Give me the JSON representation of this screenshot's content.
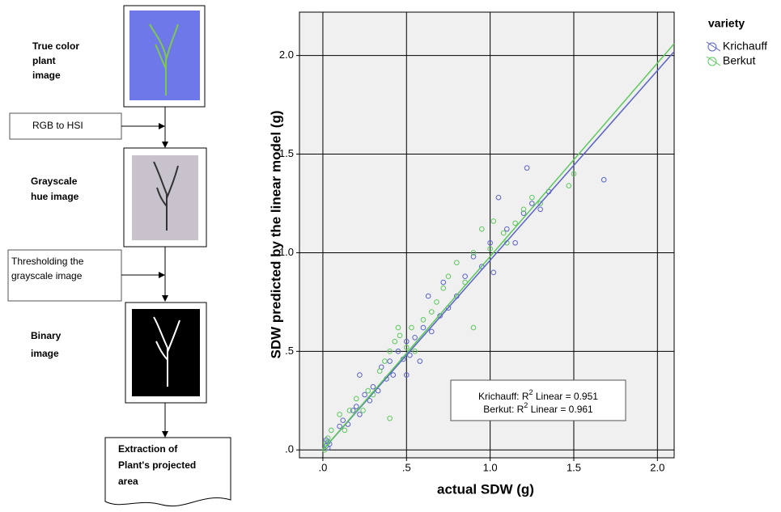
{
  "flowchart": {
    "steps": [
      {
        "lines": [
          "True color",
          "plant",
          "image"
        ]
      },
      {
        "lines": [
          "Grayscale",
          "hue image"
        ]
      },
      {
        "lines": [
          "Binary",
          "image"
        ]
      }
    ],
    "processes": [
      {
        "lines": [
          "RGB to HSI"
        ]
      },
      {
        "lines": [
          "Thresholding the",
          "grayscale image"
        ]
      }
    ],
    "output": {
      "lines": [
        "Extraction of",
        "Plant's projected",
        "area"
      ]
    }
  },
  "chart_data": {
    "type": "scatter",
    "xlabel": "actual SDW (g)",
    "ylabel": "SDW predicted by the linear model (g)",
    "xlim": [
      -0.14,
      2.1
    ],
    "ylim": [
      -0.04,
      2.22
    ],
    "xticks": [
      {
        "value": 0,
        "label": ".0"
      },
      {
        "value": 0.5,
        "label": ".5"
      },
      {
        "value": 1,
        "label": "1.0"
      },
      {
        "value": 1.5,
        "label": "1.5"
      },
      {
        "value": 2,
        "label": "2.0"
      }
    ],
    "yticks": [
      {
        "value": 0,
        "label": ".0"
      },
      {
        "value": 0.5,
        "label": ".5"
      },
      {
        "value": 1,
        "label": "1.0"
      },
      {
        "value": 1.5,
        "label": "1.5"
      },
      {
        "value": 2,
        "label": "2.0"
      }
    ],
    "grid": true,
    "legend_title": "variety",
    "legend_position": "outside-right",
    "series": [
      {
        "name": "Krichauff",
        "color": "#5a63c8",
        "x": [
          0.02,
          0.03,
          0.02,
          0.04,
          0.03,
          0.1,
          0.12,
          0.15,
          0.18,
          0.2,
          0.22,
          0.25,
          0.28,
          0.3,
          0.33,
          0.35,
          0.38,
          0.4,
          0.42,
          0.45,
          0.48,
          0.5,
          0.52,
          0.55,
          0.58,
          0.6,
          0.63,
          0.65,
          0.7,
          0.72,
          0.75,
          0.8,
          0.85,
          0.9,
          0.95,
          1.0,
          1.02,
          1.05,
          1.1,
          1.15,
          1.2,
          1.22,
          1.25,
          1.3,
          1.35,
          1.68,
          0.22,
          0.5
        ],
        "y": [
          0.02,
          0.04,
          0.05,
          0.03,
          0.01,
          0.12,
          0.15,
          0.13,
          0.2,
          0.22,
          0.18,
          0.28,
          0.25,
          0.32,
          0.3,
          0.42,
          0.36,
          0.45,
          0.38,
          0.5,
          0.46,
          0.55,
          0.48,
          0.57,
          0.45,
          0.62,
          0.78,
          0.6,
          0.68,
          0.85,
          0.72,
          0.78,
          0.88,
          0.98,
          0.93,
          1.05,
          0.9,
          1.28,
          1.12,
          1.05,
          1.2,
          1.43,
          1.25,
          1.22,
          1.31,
          1.37,
          0.38,
          0.38
        ],
        "fit": {
          "x": [
            0,
            2.1
          ],
          "y": [
            0,
            2.02
          ]
        }
      },
      {
        "name": "Berkut",
        "color": "#5cc85c",
        "x": [
          0.02,
          0.01,
          0.03,
          0.05,
          0.1,
          0.13,
          0.16,
          0.2,
          0.24,
          0.27,
          0.3,
          0.34,
          0.37,
          0.4,
          0.4,
          0.43,
          0.46,
          0.5,
          0.53,
          0.55,
          0.6,
          0.65,
          0.68,
          0.72,
          0.75,
          0.8,
          0.85,
          0.9,
          0.95,
          1.0,
          1.02,
          1.08,
          1.1,
          1.15,
          1.2,
          1.25,
          1.3,
          1.5,
          1.47,
          0.9,
          0.45
        ],
        "y": [
          0.03,
          0.0,
          0.06,
          0.1,
          0.18,
          0.1,
          0.2,
          0.26,
          0.2,
          0.3,
          0.28,
          0.4,
          0.45,
          0.16,
          0.5,
          0.55,
          0.58,
          0.52,
          0.62,
          0.5,
          0.66,
          0.7,
          0.75,
          0.82,
          0.88,
          0.95,
          0.85,
          1.0,
          1.12,
          1.02,
          1.16,
          1.1,
          1.05,
          1.15,
          1.22,
          1.28,
          1.25,
          1.4,
          1.34,
          0.62,
          0.62
        ],
        "fit": {
          "x": [
            0,
            2.1
          ],
          "y": [
            0,
            2.06
          ]
        }
      }
    ],
    "annotations": [
      {
        "prefix": "Krichauff: R",
        "sup": "2",
        "suffix": " Linear = 0.951"
      },
      {
        "prefix": "Berkut: R",
        "sup": "2",
        "suffix": " Linear = 0.961"
      }
    ]
  }
}
